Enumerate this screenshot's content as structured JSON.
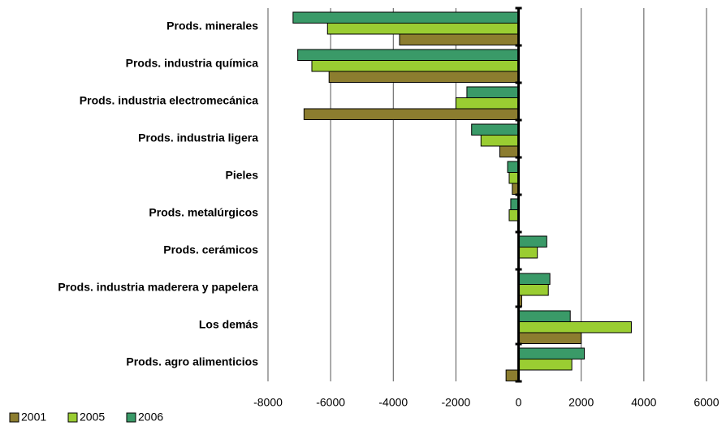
{
  "chart_data": {
    "type": "hbar",
    "categories": [
      "Prods. minerales",
      "Prods. industria química",
      "Prods. industria electromecánica",
      "Prods. industria ligera",
      "Pieles",
      "Prods. metalúrgicos",
      "Prods. cerámicos",
      "Prods. industria maderera y papelera",
      "Los demás",
      "Prods. agro alimenticios"
    ],
    "series": [
      {
        "name": "2001",
        "color": "#8c7d2f",
        "values": [
          -3800,
          -6050,
          -6850,
          -600,
          -200,
          -30,
          20,
          100,
          2000,
          -400
        ]
      },
      {
        "name": "2005",
        "color": "#9acd32",
        "values": [
          -6100,
          -6600,
          -2000,
          -1200,
          -300,
          -300,
          600,
          950,
          3600,
          1700
        ]
      },
      {
        "name": "2006",
        "color": "#3a9a68",
        "values": [
          -7200,
          -7050,
          -1650,
          -1500,
          -350,
          -250,
          900,
          1000,
          1650,
          2100
        ]
      }
    ],
    "xlim": [
      -8000,
      6000
    ],
    "xticks": [
      -8000,
      -6000,
      -4000,
      -2000,
      0,
      2000,
      4000,
      6000
    ],
    "grid": true,
    "legend": "bottom-left"
  }
}
